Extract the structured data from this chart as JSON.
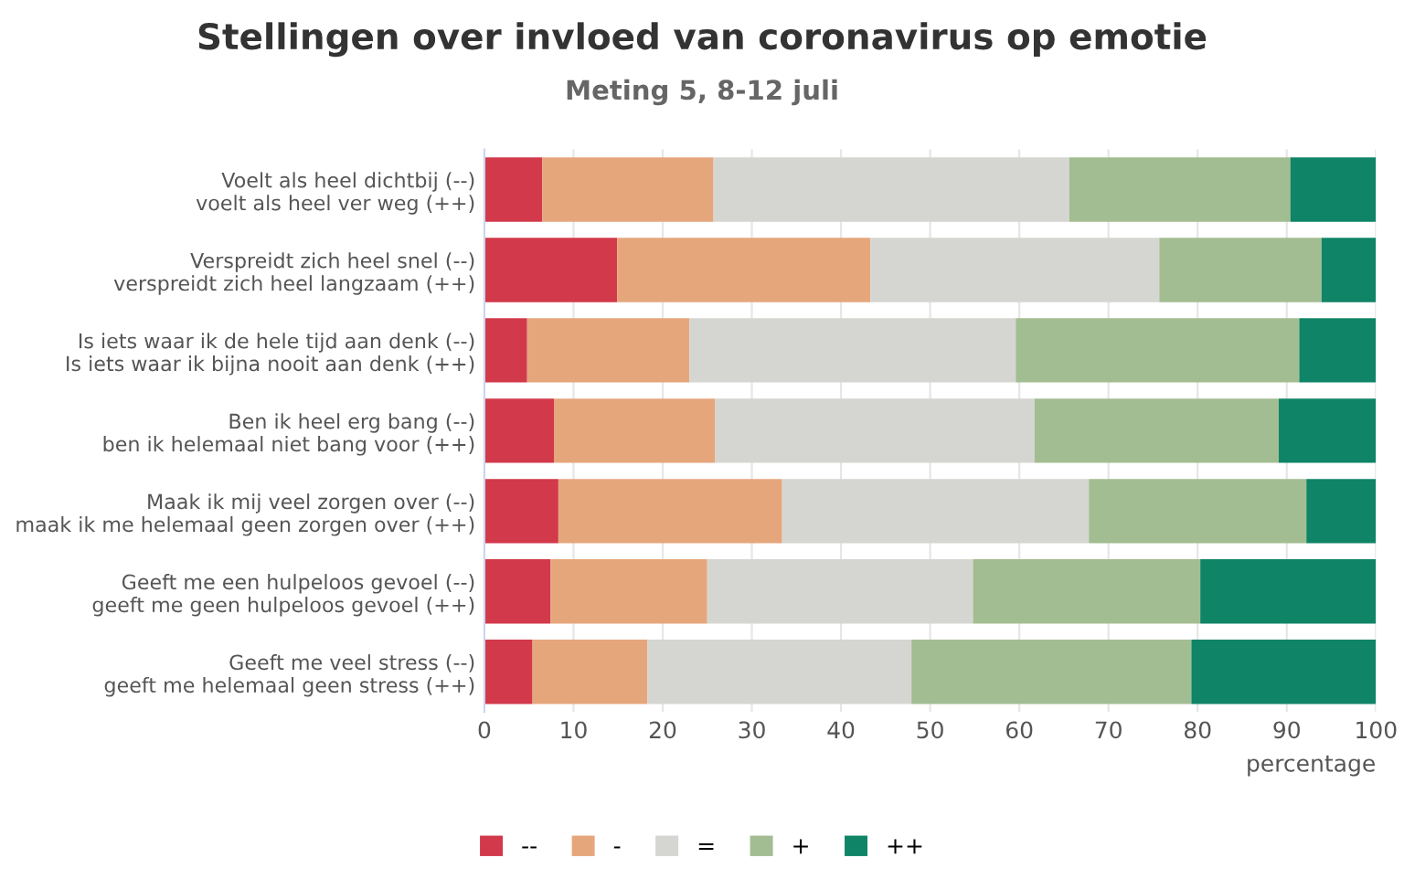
{
  "chart_data": {
    "type": "bar",
    "orientation": "horizontal",
    "stacked": true,
    "title": "Stellingen over invloed van coronavirus op emotie",
    "subtitle": "Meting 5, 8-12 juli",
    "xlabel": "percentage",
    "categories": [
      "Voelt als heel dichtbij (--)\nvoelt als heel ver weg (++)",
      "Verspreidt zich heel snel (--)\nverspreidt zich heel langzaam (++)",
      "Is iets waar ik de hele tijd aan denk (--)\nIs iets waar ik bijna nooit aan denk (++)",
      "Ben ik heel erg bang (--)\nben ik helemaal niet bang voor (++)",
      "Maak ik mij veel zorgen over (--)\nmaak ik me helemaal geen zorgen over (++)",
      "Geeft me een hulpeloos gevoel (--)\ngeeft me geen hulpeloos gevoel (++)",
      "Geeft me veel stress (--)\ngeeft me helemaal geen stress (++)"
    ],
    "series": [
      {
        "name": "--",
        "color": "#d2394b",
        "values": [
          6.5,
          14.9,
          4.8,
          7.8,
          8.3,
          7.4,
          5.4
        ]
      },
      {
        "name": "-",
        "color": "#e6a67c",
        "values": [
          19.2,
          28.4,
          18.2,
          18.1,
          25.1,
          17.6,
          12.9
        ]
      },
      {
        "name": "=",
        "color": "#d5d6d1",
        "values": [
          39.9,
          32.4,
          36.6,
          35.8,
          34.4,
          29.8,
          29.6
        ]
      },
      {
        "name": "+",
        "color": "#a3bd92",
        "values": [
          24.8,
          18.2,
          31.8,
          27.4,
          24.4,
          25.5,
          31.4
        ]
      },
      {
        "name": "++",
        "color": "#0f8466",
        "values": [
          9.6,
          6.1,
          8.6,
          10.9,
          7.8,
          19.7,
          20.7
        ]
      }
    ],
    "xlim": [
      0,
      100
    ],
    "xticks": [
      0,
      10,
      20,
      30,
      40,
      50,
      60,
      70,
      80,
      90,
      100
    ],
    "grid": "x",
    "legend": "bottom"
  }
}
